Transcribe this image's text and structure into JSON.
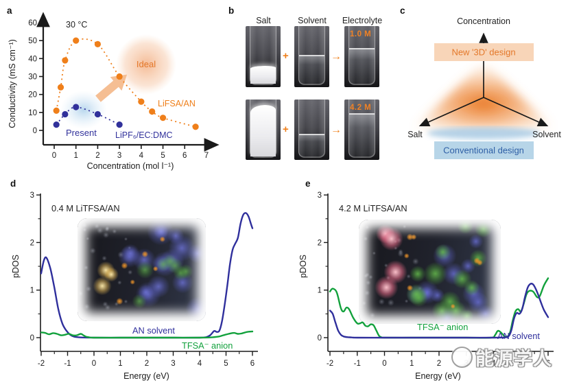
{
  "panels": {
    "a": "a",
    "b": "b",
    "c": "c",
    "d": "d",
    "e": "e"
  },
  "watermark": {
    "text": "能源学人"
  },
  "panel_b": {
    "headers": [
      "Salt",
      "Solvent",
      "Electrolyte"
    ],
    "plus": "+",
    "arrow": "→",
    "rows": [
      {
        "molarity": "1.0 M"
      },
      {
        "molarity": "4.2 M"
      }
    ]
  },
  "panel_c": {
    "top_label": "Concentration",
    "left_label": "Salt",
    "right_label": "Solvent",
    "new_design_label": "New '3D' design",
    "conventional_label": "Conventional design",
    "colors": {
      "orange_text": "#E4782A",
      "orange_box": "#F8D5B8",
      "blue_text": "#2E5FA6",
      "blue_box": "#B7D5E8"
    }
  },
  "chart_data": [
    {
      "panel": "a",
      "type": "line-scatter",
      "annotations": {
        "temperature": "30 °C",
        "ideal": "Ideal",
        "present": "Present"
      },
      "xlabel": "Concentration (mol l⁻¹)",
      "ylabel": "Conductivity (mS cm⁻¹)",
      "xlim": [
        0,
        7
      ],
      "ylim": [
        0,
        60
      ],
      "xticks": [
        0,
        1,
        2,
        3,
        4,
        5,
        6,
        7
      ],
      "yticks": [
        0,
        10,
        20,
        30,
        40,
        50,
        60
      ],
      "series": [
        {
          "name": "LiFSA/AN",
          "color": "#EF7F1A",
          "x": [
            0.1,
            0.3,
            0.5,
            1,
            2,
            3,
            4,
            4.5,
            5,
            6.5
          ],
          "y": [
            11,
            24,
            39,
            50,
            48,
            30,
            16,
            10.5,
            7,
            2
          ]
        },
        {
          "name": "LiPF₆/EC:DMC",
          "color": "#31319B",
          "x": [
            0.1,
            0.5,
            1,
            2,
            3
          ],
          "y": [
            3.2,
            9,
            13,
            9,
            3.2
          ]
        }
      ]
    },
    {
      "panel": "d",
      "type": "line",
      "annotation": "0.4 M LiTFSA/AN",
      "xlabel": "Energy (eV)",
      "ylabel": "pDOS",
      "xlim": [
        -2,
        6
      ],
      "ylim": [
        0,
        3
      ],
      "xticks": [
        -2,
        -1,
        0,
        1,
        2,
        3,
        4,
        5,
        6
      ],
      "yticks": [
        0,
        1,
        2,
        3
      ],
      "minor_step": 0.5,
      "series": [
        {
          "name": "AN solvent",
          "color": "#2F2F9C",
          "points": [
            [
              -2,
              1.35
            ],
            [
              -1.9,
              1.62
            ],
            [
              -1.8,
              1.68
            ],
            [
              -1.65,
              1.45
            ],
            [
              -1.5,
              1.05
            ],
            [
              -1.35,
              0.6
            ],
            [
              -1.2,
              0.3
            ],
            [
              -1.05,
              0.15
            ],
            [
              -0.9,
              0.06
            ],
            [
              -0.75,
              0.02
            ],
            [
              -0.5,
              0.005
            ],
            [
              0,
              0
            ],
            [
              1,
              0
            ],
            [
              2,
              0
            ],
            [
              3,
              0
            ],
            [
              4,
              0
            ],
            [
              4.25,
              0.01
            ],
            [
              4.4,
              0.05
            ],
            [
              4.55,
              0.14
            ],
            [
              4.65,
              0.12
            ],
            [
              4.75,
              0.15
            ],
            [
              4.85,
              0.35
            ],
            [
              4.95,
              0.7
            ],
            [
              5.05,
              1.1
            ],
            [
              5.15,
              1.55
            ],
            [
              5.25,
              1.85
            ],
            [
              5.35,
              1.98
            ],
            [
              5.45,
              2.1
            ],
            [
              5.55,
              2.4
            ],
            [
              5.65,
              2.58
            ],
            [
              5.75,
              2.62
            ],
            [
              5.85,
              2.55
            ],
            [
              5.95,
              2.38
            ],
            [
              6,
              2.3
            ]
          ]
        },
        {
          "name": "TFSA⁻ anion",
          "color": "#12A13C",
          "points": [
            [
              -2,
              0.11
            ],
            [
              -1.85,
              0.1
            ],
            [
              -1.7,
              0.07
            ],
            [
              -1.55,
              0.095
            ],
            [
              -1.4,
              0.08
            ],
            [
              -1.25,
              0.05
            ],
            [
              -1.1,
              0.06
            ],
            [
              -0.95,
              0.08
            ],
            [
              -0.8,
              0.05
            ],
            [
              -0.65,
              0.05
            ],
            [
              -0.5,
              0.08
            ],
            [
              -0.4,
              0.05
            ],
            [
              -0.3,
              0.02
            ],
            [
              -0.15,
              0.005
            ],
            [
              0,
              0
            ],
            [
              1,
              0
            ],
            [
              2,
              0
            ],
            [
              3,
              0
            ],
            [
              4,
              0
            ],
            [
              4.4,
              0.005
            ],
            [
              4.7,
              0.02
            ],
            [
              4.9,
              0.05
            ],
            [
              5.1,
              0.08
            ],
            [
              5.3,
              0.1
            ],
            [
              5.45,
              0.08
            ],
            [
              5.6,
              0.09
            ],
            [
              5.8,
              0.12
            ],
            [
              6,
              0.13
            ]
          ]
        }
      ]
    },
    {
      "panel": "e",
      "type": "line",
      "annotation": "4.2 M LiTFSA/AN",
      "xlabel": "Energy (eV)",
      "ylabel": "pDOS",
      "xlim": [
        -2,
        6
      ],
      "ylim": [
        0,
        3
      ],
      "xticks": [
        -2,
        -1,
        0,
        1,
        2,
        3,
        4,
        5,
        6
      ],
      "yticks": [
        0,
        1,
        2,
        3
      ],
      "minor_step": 0.5,
      "series": [
        {
          "name": "TFSA⁻ anion",
          "color": "#12A13C",
          "points": [
            [
              -2,
              0.97
            ],
            [
              -1.9,
              1.03
            ],
            [
              -1.75,
              0.95
            ],
            [
              -1.6,
              0.62
            ],
            [
              -1.5,
              0.55
            ],
            [
              -1.4,
              0.63
            ],
            [
              -1.3,
              0.6
            ],
            [
              -1.15,
              0.42
            ],
            [
              -1.0,
              0.3
            ],
            [
              -0.9,
              0.3
            ],
            [
              -0.8,
              0.32
            ],
            [
              -0.7,
              0.25
            ],
            [
              -0.6,
              0.24
            ],
            [
              -0.5,
              0.28
            ],
            [
              -0.4,
              0.26
            ],
            [
              -0.3,
              0.15
            ],
            [
              -0.2,
              0.04
            ],
            [
              -0.1,
              0.005
            ],
            [
              0,
              0
            ],
            [
              1,
              0
            ],
            [
              2,
              0
            ],
            [
              3,
              0
            ],
            [
              3.9,
              0
            ],
            [
              4.05,
              0.05
            ],
            [
              4.15,
              0.14
            ],
            [
              4.25,
              0.12
            ],
            [
              4.4,
              0.03
            ],
            [
              4.5,
              0.02
            ],
            [
              4.6,
              0.1
            ],
            [
              4.7,
              0.35
            ],
            [
              4.8,
              0.55
            ],
            [
              4.9,
              0.6
            ],
            [
              5.0,
              0.55
            ],
            [
              5.1,
              0.7
            ],
            [
              5.2,
              0.9
            ],
            [
              5.3,
              0.98
            ],
            [
              5.45,
              0.97
            ],
            [
              5.6,
              0.85
            ],
            [
              5.7,
              0.88
            ],
            [
              5.85,
              1.1
            ],
            [
              6,
              1.25
            ]
          ]
        },
        {
          "name": "AN solvent",
          "color": "#2F2F9C",
          "points": [
            [
              -2,
              0.57
            ],
            [
              -1.9,
              0.5
            ],
            [
              -1.8,
              0.32
            ],
            [
              -1.7,
              0.15
            ],
            [
              -1.6,
              0.06
            ],
            [
              -1.5,
              0.025
            ],
            [
              -1.35,
              0.01
            ],
            [
              -1.2,
              0.005
            ],
            [
              -1,
              0
            ],
            [
              0,
              0
            ],
            [
              1,
              0
            ],
            [
              2,
              0
            ],
            [
              3,
              0
            ],
            [
              4,
              0
            ],
            [
              4.4,
              0.005
            ],
            [
              4.55,
              0.03
            ],
            [
              4.65,
              0.15
            ],
            [
              4.75,
              0.4
            ],
            [
              4.85,
              0.52
            ],
            [
              4.95,
              0.5
            ],
            [
              5.05,
              0.6
            ],
            [
              5.15,
              0.85
            ],
            [
              5.25,
              1.05
            ],
            [
              5.35,
              1.13
            ],
            [
              5.45,
              1.12
            ],
            [
              5.55,
              1.02
            ],
            [
              5.65,
              0.88
            ],
            [
              5.75,
              0.72
            ],
            [
              5.85,
              0.58
            ],
            [
              6,
              0.43
            ]
          ]
        }
      ]
    }
  ]
}
